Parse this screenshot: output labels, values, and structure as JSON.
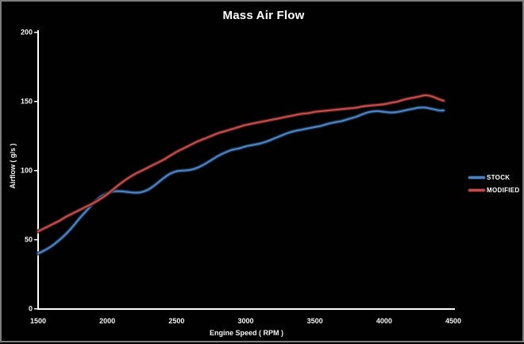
{
  "frame": {
    "background": "#010101",
    "border_color": "#7d7d7d"
  },
  "chart_data": {
    "type": "line",
    "title": "Mass Air Flow",
    "xlabel": "Engine Speed ( RPM )",
    "ylabel": "Airflow ( g/s )",
    "xlim": [
      1500,
      4500
    ],
    "ylim": [
      0,
      200
    ],
    "x_ticks": [
      1500,
      2000,
      2500,
      3000,
      3500,
      4000,
      4500
    ],
    "y_ticks": [
      0,
      50,
      100,
      150,
      200
    ],
    "grid": false,
    "background": "#010101",
    "axis_color": "#ffffff",
    "text_color": "#f5f5f5",
    "legend_position": "right",
    "smooth": true,
    "x": [
      1500,
      1550,
      1600,
      1650,
      1700,
      1750,
      1800,
      1850,
      1900,
      1950,
      2000,
      2050,
      2100,
      2150,
      2200,
      2250,
      2300,
      2350,
      2400,
      2450,
      2500,
      2550,
      2600,
      2650,
      2700,
      2750,
      2800,
      2850,
      2900,
      2950,
      3000,
      3050,
      3100,
      3150,
      3200,
      3250,
      3300,
      3350,
      3400,
      3450,
      3500,
      3550,
      3600,
      3650,
      3700,
      3750,
      3800,
      3850,
      3900,
      3950,
      4000,
      4050,
      4100,
      4150,
      4200,
      4250,
      4300,
      4350,
      4400,
      4430
    ],
    "series": [
      {
        "name": "STOCK",
        "color": "#4f81bd",
        "halo_color": "#16304f",
        "values": [
          40,
          42.5,
          45.5,
          49.5,
          54,
          59.5,
          65.5,
          71,
          76.5,
          81,
          83.5,
          85,
          85,
          84.5,
          84,
          84.5,
          86.5,
          90,
          94,
          97.5,
          99.5,
          100,
          100.5,
          102,
          104.5,
          107.5,
          110.5,
          113,
          115,
          116,
          117.5,
          118.5,
          119.5,
          121,
          123,
          125,
          127,
          128.5,
          129.5,
          130.5,
          131.5,
          132.5,
          134,
          135,
          136,
          137.5,
          139,
          141,
          142.5,
          143,
          142.5,
          142,
          142.5,
          143.5,
          144.5,
          145.5,
          145.5,
          144.5,
          143.5,
          143.5
        ]
      },
      {
        "name": "MODIFIED",
        "color": "#bf4d4a",
        "halo_color": "#47191b",
        "values": [
          56,
          58.5,
          61,
          63.5,
          66.5,
          69,
          71.5,
          74,
          76.5,
          79.5,
          83,
          87,
          91,
          94.5,
          97.5,
          100,
          102.5,
          105,
          107.5,
          110.5,
          113.5,
          116,
          118.5,
          121,
          123,
          125,
          127,
          128.5,
          130,
          131.5,
          133,
          134,
          135,
          136,
          137,
          138,
          139,
          140,
          141,
          141.5,
          142.5,
          143,
          143.5,
          144,
          144.5,
          145,
          145.5,
          146.5,
          147,
          147.5,
          148,
          149,
          150,
          151.5,
          152.5,
          153.5,
          154.5,
          153.5,
          151.5,
          150.5
        ]
      }
    ]
  }
}
